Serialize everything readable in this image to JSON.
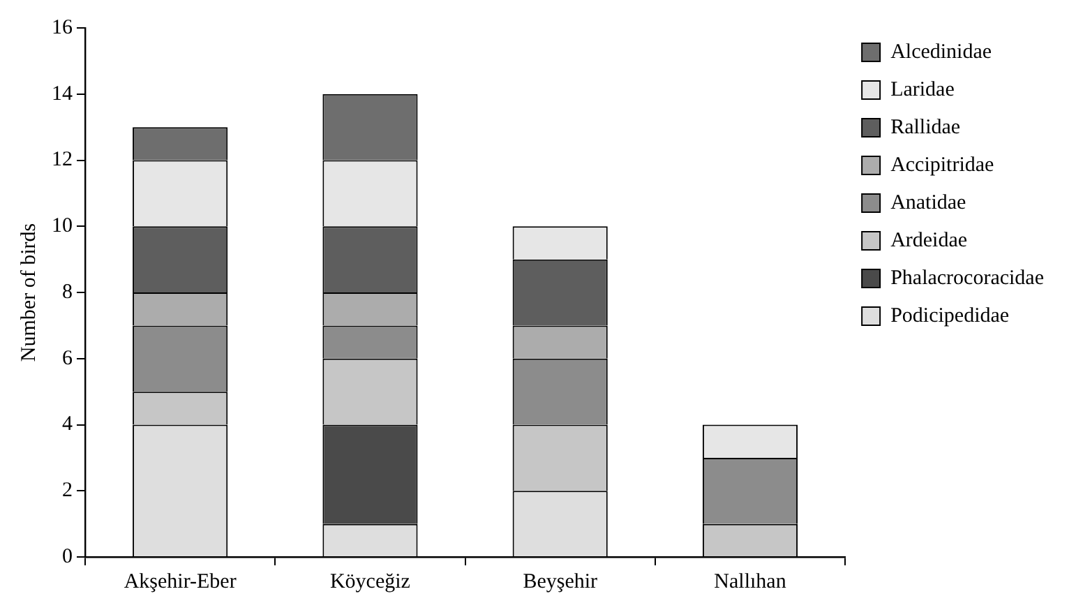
{
  "chart_data": {
    "type": "bar",
    "stacked": true,
    "ylabel": "Number of birds",
    "categories": [
      "Akşehir-Eber",
      "Köyceğiz",
      "Beyşehir",
      "Nallıhan"
    ],
    "series": [
      {
        "name": "Podicipedidae",
        "color": "#dedede",
        "values": [
          4,
          1,
          2,
          0
        ]
      },
      {
        "name": "Phalacrocoracidae",
        "color": "#4a4a4a",
        "values": [
          0,
          3,
          0,
          0
        ]
      },
      {
        "name": "Ardeidae",
        "color": "#c6c6c6",
        "values": [
          1,
          2,
          2,
          1
        ]
      },
      {
        "name": "Anatidae",
        "color": "#8c8c8c",
        "values": [
          2,
          1,
          2,
          2
        ]
      },
      {
        "name": "Accipitridae",
        "color": "#acacac",
        "values": [
          1,
          1,
          1,
          0
        ]
      },
      {
        "name": "Rallidae",
        "color": "#5e5e5e",
        "values": [
          2,
          2,
          2,
          0
        ]
      },
      {
        "name": "Laridae",
        "color": "#e6e6e6",
        "values": [
          2,
          2,
          1,
          1
        ]
      },
      {
        "name": "Alcedinidae",
        "color": "#6e6e6e",
        "values": [
          1,
          2,
          0,
          0
        ]
      }
    ],
    "ylim": [
      0,
      16
    ],
    "yticks": [
      0,
      2,
      4,
      6,
      8,
      10,
      12,
      14,
      16
    ],
    "grid": false,
    "legend": "right"
  }
}
